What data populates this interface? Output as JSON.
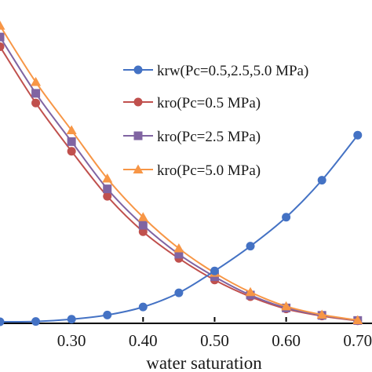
{
  "chart_data": {
    "type": "line",
    "xlabel": "water saturation",
    "ylabel": "",
    "xlim": [
      0.2,
      0.72
    ],
    "ylim": [
      0,
      1
    ],
    "x_ticks": [
      0.3,
      0.4,
      0.5,
      0.6,
      0.7
    ],
    "x_tick_labels": [
      "0.30",
      "0.40",
      "0.50",
      "0.60",
      "0.70"
    ],
    "grid": false,
    "legend_position": "top-right",
    "series": [
      {
        "name": "krw(Pc=0.5,2.5,5.0 MPa)",
        "color": "#4472C4",
        "marker": "circle",
        "x": [
          0.2,
          0.25,
          0.3,
          0.35,
          0.4,
          0.45,
          0.5,
          0.55,
          0.6,
          0.65,
          0.7
        ],
        "y": [
          0.0,
          0.001,
          0.008,
          0.021,
          0.046,
          0.09,
          0.158,
          0.235,
          0.325,
          0.44,
          0.58
        ]
      },
      {
        "name": "kro(Pc=0.5 MPa)",
        "color": "#C0504D",
        "marker": "circle",
        "x": [
          0.2,
          0.25,
          0.3,
          0.35,
          0.4,
          0.45,
          0.5,
          0.55,
          0.6,
          0.65,
          0.7
        ],
        "y": [
          0.855,
          0.68,
          0.53,
          0.39,
          0.28,
          0.197,
          0.13,
          0.078,
          0.04,
          0.018,
          0.003
        ]
      },
      {
        "name": "kro(Pc=2.5 MPa)",
        "color": "#8064A2",
        "marker": "square",
        "x": [
          0.2,
          0.25,
          0.3,
          0.35,
          0.4,
          0.45,
          0.5,
          0.55,
          0.6,
          0.65,
          0.7
        ],
        "y": [
          0.885,
          0.71,
          0.56,
          0.413,
          0.3,
          0.21,
          0.14,
          0.083,
          0.043,
          0.02,
          0.004
        ]
      },
      {
        "name": "kro(Pc=5.0 MPa)",
        "color": "#F79646",
        "marker": "triangle",
        "x": [
          0.2,
          0.25,
          0.3,
          0.35,
          0.4,
          0.45,
          0.5,
          0.55,
          0.6,
          0.65,
          0.7
        ],
        "y": [
          0.92,
          0.745,
          0.595,
          0.445,
          0.325,
          0.228,
          0.152,
          0.092,
          0.048,
          0.022,
          0.005
        ]
      }
    ]
  }
}
